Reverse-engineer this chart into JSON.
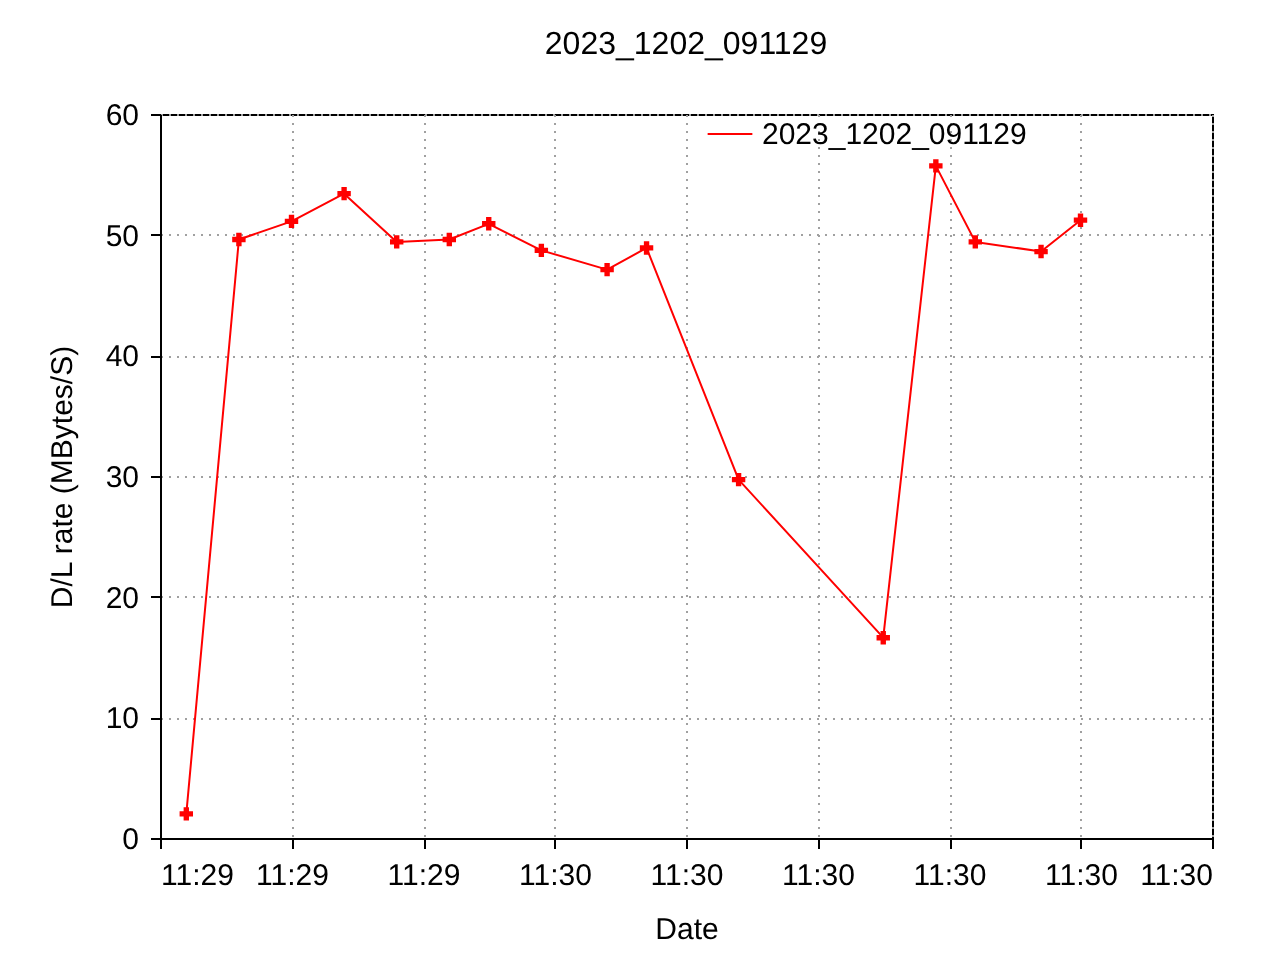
{
  "chart_data": {
    "type": "line",
    "title": "2023_1202_091129",
    "xlabel": "Date",
    "ylabel": "D/L rate (MBytes/S)",
    "x": [
      "2023-12-02T11:29:32",
      "2023-12-02T11:29:36",
      "2023-12-02T11:29:40",
      "2023-12-02T11:29:44",
      "2023-12-02T11:29:48",
      "2023-12-02T11:29:52",
      "2023-12-02T11:29:55",
      "2023-12-02T11:29:59",
      "2023-12-02T11:30:04",
      "2023-12-02T11:30:07",
      "2023-12-02T11:30:14",
      "2023-12-02T11:30:25",
      "2023-12-02T11:30:29",
      "2023-12-02T11:30:32",
      "2023-12-02T11:30:37",
      "2023-12-02T11:30:40"
    ],
    "series": [
      {
        "name": "2023_1202_091129",
        "color": "#ff0000",
        "values": [
          2.0,
          49.6,
          51.1,
          53.4,
          49.4,
          49.6,
          50.9,
          48.7,
          47.1,
          48.9,
          29.7,
          16.6,
          55.7,
          49.4,
          48.6,
          51.2
        ]
      }
    ],
    "xlim": [
      "2023-12-02T11:29:30",
      "2023-12-02T11:30:50"
    ],
    "xticks": [
      {
        "value": "2023-12-02T11:29:30",
        "label": "11:29"
      },
      {
        "value": "2023-12-02T11:29:40",
        "label": "11:29"
      },
      {
        "value": "2023-12-02T11:29:50",
        "label": "11:29"
      },
      {
        "value": "2023-12-02T11:30:00",
        "label": "11:30"
      },
      {
        "value": "2023-12-02T11:30:10",
        "label": "11:30"
      },
      {
        "value": "2023-12-02T11:30:20",
        "label": "11:30"
      },
      {
        "value": "2023-12-02T11:30:30",
        "label": "11:30"
      },
      {
        "value": "2023-12-02T11:30:40",
        "label": "11:30"
      },
      {
        "value": "2023-12-02T11:30:50",
        "label": "11:30"
      }
    ],
    "ylim": [
      0,
      60
    ],
    "yticks": [
      0,
      10,
      20,
      30,
      40,
      50,
      60
    ],
    "grid": true,
    "legend": "top right",
    "marker": "cross",
    "line_style": "solid"
  }
}
